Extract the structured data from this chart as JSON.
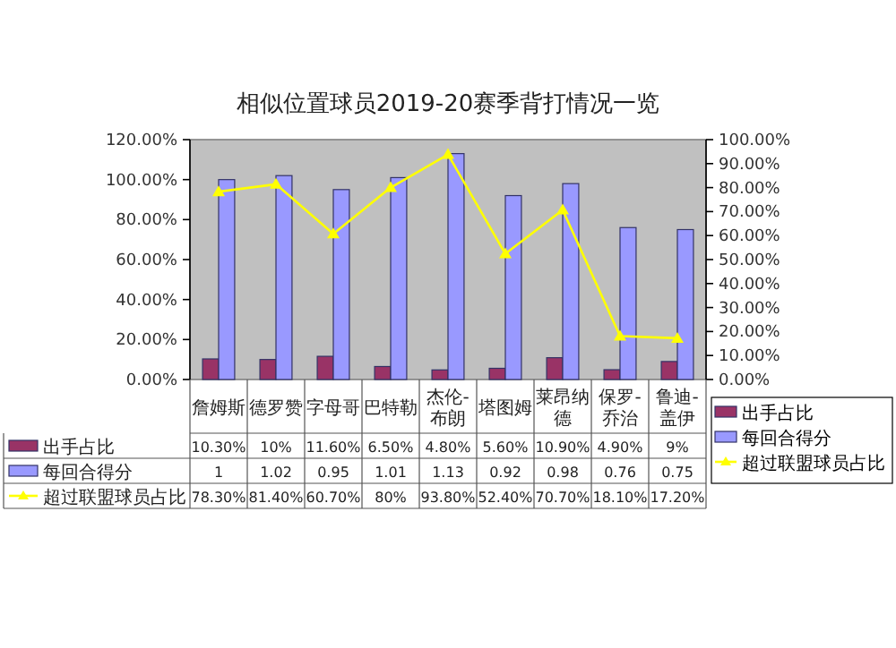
{
  "chart_data": {
    "type": "bar",
    "title": "相似位置球员2019-20赛季背打情况一览",
    "categories": [
      "詹姆斯",
      "德罗赞",
      "字母哥",
      "巴特勒",
      "杰伦-布朗",
      "塔图姆",
      "莱昂纳德",
      "保罗-乔治",
      "鲁迪-盖伊"
    ],
    "series": [
      {
        "name": "出手占比",
        "color": "#993366",
        "values": [
          0.103,
          0.1,
          0.116,
          0.065,
          0.048,
          0.056,
          0.109,
          0.049,
          0.09
        ],
        "value_labels": [
          "10.30%",
          "10%",
          "11.60%",
          "6.50%",
          "4.80%",
          "5.60%",
          "10.90%",
          "4.90%",
          "9%"
        ]
      },
      {
        "name": "每回合得分",
        "color": "#9999ff",
        "values": [
          1,
          1.02,
          0.95,
          1.01,
          1.13,
          0.92,
          0.98,
          0.76,
          0.75
        ],
        "value_labels": [
          "1",
          "1.02",
          "0.95",
          "1.01",
          "1.13",
          "0.92",
          "0.98",
          "0.76",
          "0.75"
        ]
      },
      {
        "name": "超过联盟球员占比",
        "type": "line",
        "axis": "y2",
        "color": "#ffff00",
        "marker": "triangle",
        "values": [
          0.783,
          0.814,
          0.607,
          0.8,
          0.938,
          0.524,
          0.707,
          0.181,
          0.172
        ],
        "value_labels": [
          "78.30%",
          "81.40%",
          "60.70%",
          "80%",
          "93.80%",
          "52.40%",
          "70.70%",
          "18.10%",
          "17.20%"
        ]
      }
    ],
    "ylim": [
      0,
      1.2
    ],
    "yticks": [
      {
        "value": 0,
        "label": "0.00%"
      },
      {
        "value": 0.2,
        "label": "20.00%"
      },
      {
        "value": 0.4,
        "label": "40.00%"
      },
      {
        "value": 0.6,
        "label": "60.00%"
      },
      {
        "value": 0.8,
        "label": "80.00%"
      },
      {
        "value": 1,
        "label": "100.00%"
      },
      {
        "value": 1.2,
        "label": "120.00%"
      }
    ],
    "y2lim": [
      0,
      1
    ],
    "y2ticks": [
      {
        "value": 0,
        "label": "0.00%"
      },
      {
        "value": 0.1,
        "label": "10.00%"
      },
      {
        "value": 0.2,
        "label": "20.00%"
      },
      {
        "value": 0.3,
        "label": "30.00%"
      },
      {
        "value": 0.4,
        "label": "40.00%"
      },
      {
        "value": 0.5,
        "label": "50.00%"
      },
      {
        "value": 0.6,
        "label": "60.00%"
      },
      {
        "value": 0.7,
        "label": "70.00%"
      },
      {
        "value": 0.8,
        "label": "80.00%"
      },
      {
        "value": 0.9,
        "label": "90.00%"
      },
      {
        "value": 1,
        "label": "100.00%"
      }
    ],
    "grid": false,
    "legend": "bottom right"
  }
}
